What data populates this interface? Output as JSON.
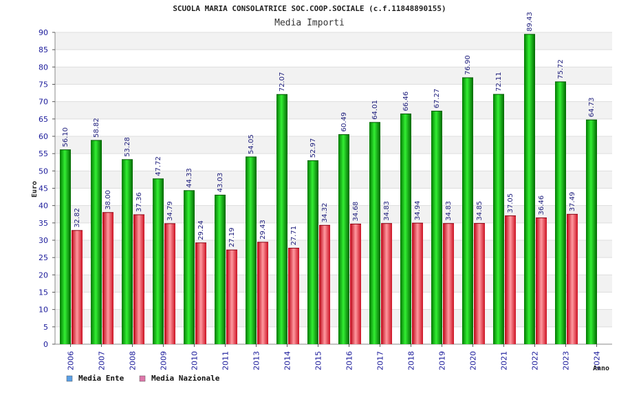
{
  "chart_data": {
    "type": "bar",
    "title": "SCUOLA MARIA CONSOLATRICE SOC.COOP.SOCIALE (c.f.11848890155)",
    "subtitle": "Media Importi",
    "xlabel": "Anno",
    "ylabel": "Euro",
    "ylim": [
      0,
      90
    ],
    "ytick_step": 5,
    "grid": true,
    "legend_position": "bottom-left",
    "categories": [
      "2006",
      "2007",
      "2008",
      "2009",
      "2010",
      "2011",
      "2013",
      "2014",
      "2015",
      "2016",
      "2017",
      "2018",
      "2019",
      "2020",
      "2021",
      "2022",
      "2023",
      "2024"
    ],
    "series": [
      {
        "name": "Media Ente",
        "color": "#00bb00",
        "legend_color": "#5aa0e6",
        "values": [
          56.1,
          58.82,
          53.28,
          47.72,
          44.33,
          43.03,
          54.05,
          72.07,
          52.97,
          60.49,
          64.01,
          66.46,
          67.27,
          76.9,
          72.11,
          89.43,
          75.72,
          64.73
        ],
        "labels": [
          "56.10",
          "58.82",
          "53.28",
          "47.72",
          "44.33",
          "43.03",
          "54.05",
          "72.07",
          "52.97",
          "60.49",
          "64.01",
          "66.46",
          "67.27",
          "76.90",
          "72.11",
          "89.43",
          "75.72",
          "64.73"
        ]
      },
      {
        "name": "Media Nazionale",
        "color": "#dd2233",
        "legend_color": "#dd77aa",
        "values": [
          32.82,
          38.0,
          37.36,
          34.79,
          29.24,
          27.19,
          29.43,
          27.71,
          34.32,
          34.68,
          34.83,
          34.94,
          34.83,
          34.85,
          37.05,
          36.46,
          37.49,
          null
        ],
        "labels": [
          "32.82",
          "38.00",
          "37.36",
          "34.79",
          "29.24",
          "27.19",
          "29.43",
          "27.71",
          "34.32",
          "34.68",
          "34.83",
          "34.94",
          "34.83",
          "34.85",
          "37.05",
          "36.46",
          "37.49",
          null
        ]
      }
    ]
  }
}
